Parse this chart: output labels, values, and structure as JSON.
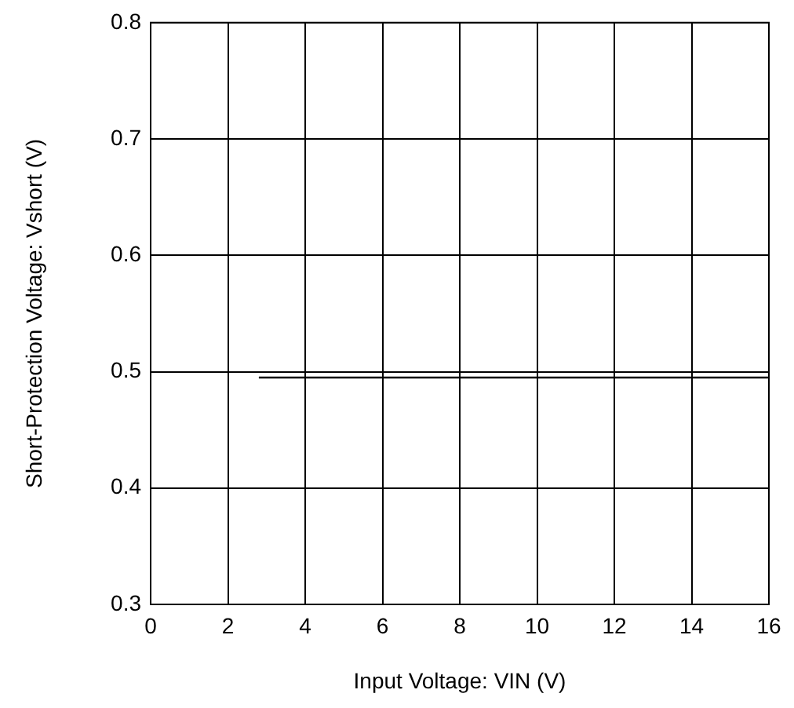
{
  "chart_data": {
    "type": "line",
    "xlabel": "Input Voltage: VIN (V)",
    "ylabel": "Short-Protection Voltage: Vshort (V)",
    "x": [
      2.8,
      16
    ],
    "series": [
      {
        "color": "#000000",
        "values": [
          0.495,
          0.495
        ]
      }
    ],
    "xlim": [
      0,
      16
    ],
    "xticks": [
      0,
      2,
      4,
      6,
      8,
      10,
      12,
      14,
      16
    ],
    "ylim": [
      0.3,
      0.8
    ],
    "yticks": [
      {
        "value": 0.3,
        "label": "0.3"
      },
      {
        "value": 0.4,
        "label": "0.4"
      },
      {
        "value": 0.5,
        "label": "0.5"
      },
      {
        "value": 0.6,
        "label": "0.6"
      },
      {
        "value": 0.7,
        "label": "0.7"
      },
      {
        "value": 0.8,
        "label": "0.8"
      }
    ],
    "grid": true,
    "marker": "none",
    "line_style": "solid",
    "legend": false
  }
}
